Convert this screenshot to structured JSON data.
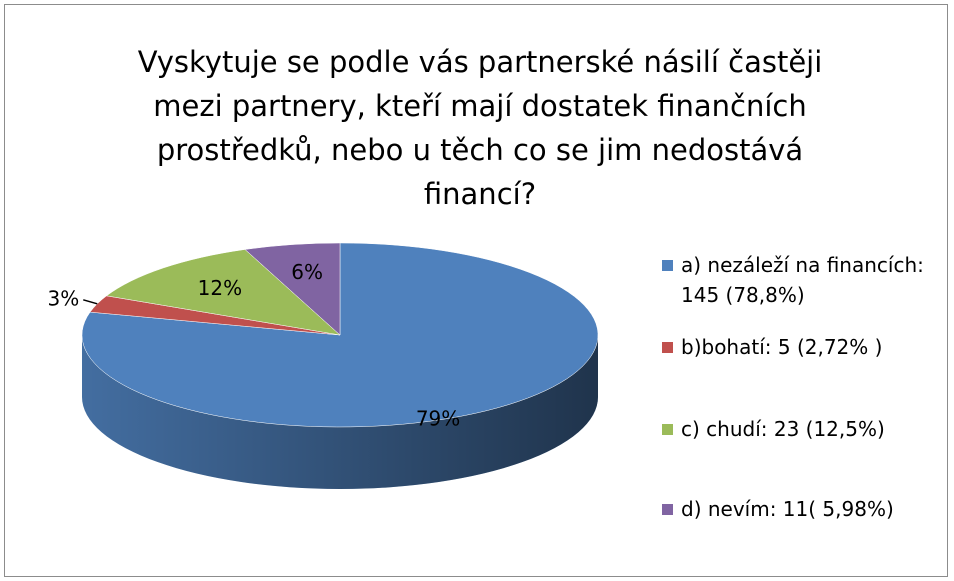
{
  "chart_data": {
    "type": "pie",
    "title": "Vyskytuje se podle vás partnerské násilí častěji mezi partnery, kteří mají dostatek finančních prostředků, nebo u těch co se jim nedostává financí?",
    "categories": [
      "a) nezáleží na financích: 145 (78,8%)",
      "b)bohatí: 5 (2,72% )",
      "c) chudí: 23 (12,5%)",
      "d) nevím: 11( 5,98%)"
    ],
    "values": [
      79,
      3,
      12,
      6
    ],
    "value_labels": [
      "79%",
      "3%",
      "12%",
      "6%"
    ],
    "colors": [
      "#4f81bd",
      "#c0504d",
      "#9bbb59",
      "#8064a2"
    ],
    "three_d": true,
    "legend": "right"
  }
}
